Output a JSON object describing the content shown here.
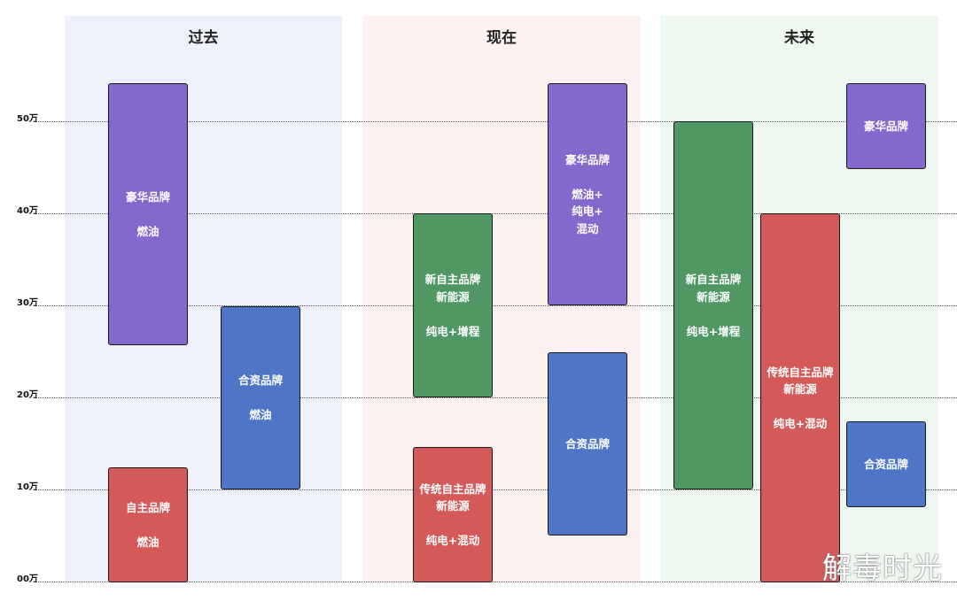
{
  "columns": [
    {
      "title": "过去",
      "bg": "#eef1fa"
    },
    {
      "title": "现在",
      "bg": "#fdf1f1"
    },
    {
      "title": "未来",
      "bg": "#eff8f0"
    }
  ],
  "axis": {
    "labels": [
      "50万",
      "40万",
      "30万",
      "20万",
      "10万",
      "00万"
    ],
    "values": [
      50,
      40,
      30,
      20,
      10,
      0
    ]
  },
  "colors": {
    "luxury": "#8468cc",
    "joint": "#4f76c6",
    "domestic": "#d35a59",
    "new_domestic": "#4f9763"
  },
  "boxes": {
    "past_luxury": "豪华品牌\n\n燃油",
    "past_joint": "合资品牌\n\n燃油",
    "past_domestic": "自主品牌\n\n燃油",
    "now_new_domestic": "新自主品牌\n新能源\n\n纯电+增程",
    "now_luxury": "豪华品牌\n\n燃油+\n纯电+\n混动",
    "now_domestic": "传统自主品牌\n新能源\n\n纯电+混动",
    "now_joint": "合资品牌",
    "future_new_domestic": "新自主品牌\n新能源\n\n纯电+增程",
    "future_luxury": "豪华品牌",
    "future_domestic": "传统自主品牌\n新能源\n\n纯电+混动",
    "future_joint": "合资品牌"
  },
  "price_ranges": {
    "past_luxury": [
      26,
      54
    ],
    "past_joint": [
      10,
      30
    ],
    "past_domestic": [
      0,
      12
    ],
    "now_new_domestic": [
      20,
      40
    ],
    "now_luxury": [
      30,
      54
    ],
    "now_domestic": [
      0,
      15
    ],
    "now_joint": [
      5,
      25
    ],
    "future_new_domestic": [
      10,
      50
    ],
    "future_luxury": [
      45,
      54
    ],
    "future_domestic": [
      0,
      40
    ],
    "future_joint": [
      8,
      17
    ]
  },
  "watermark": "解毒时光"
}
